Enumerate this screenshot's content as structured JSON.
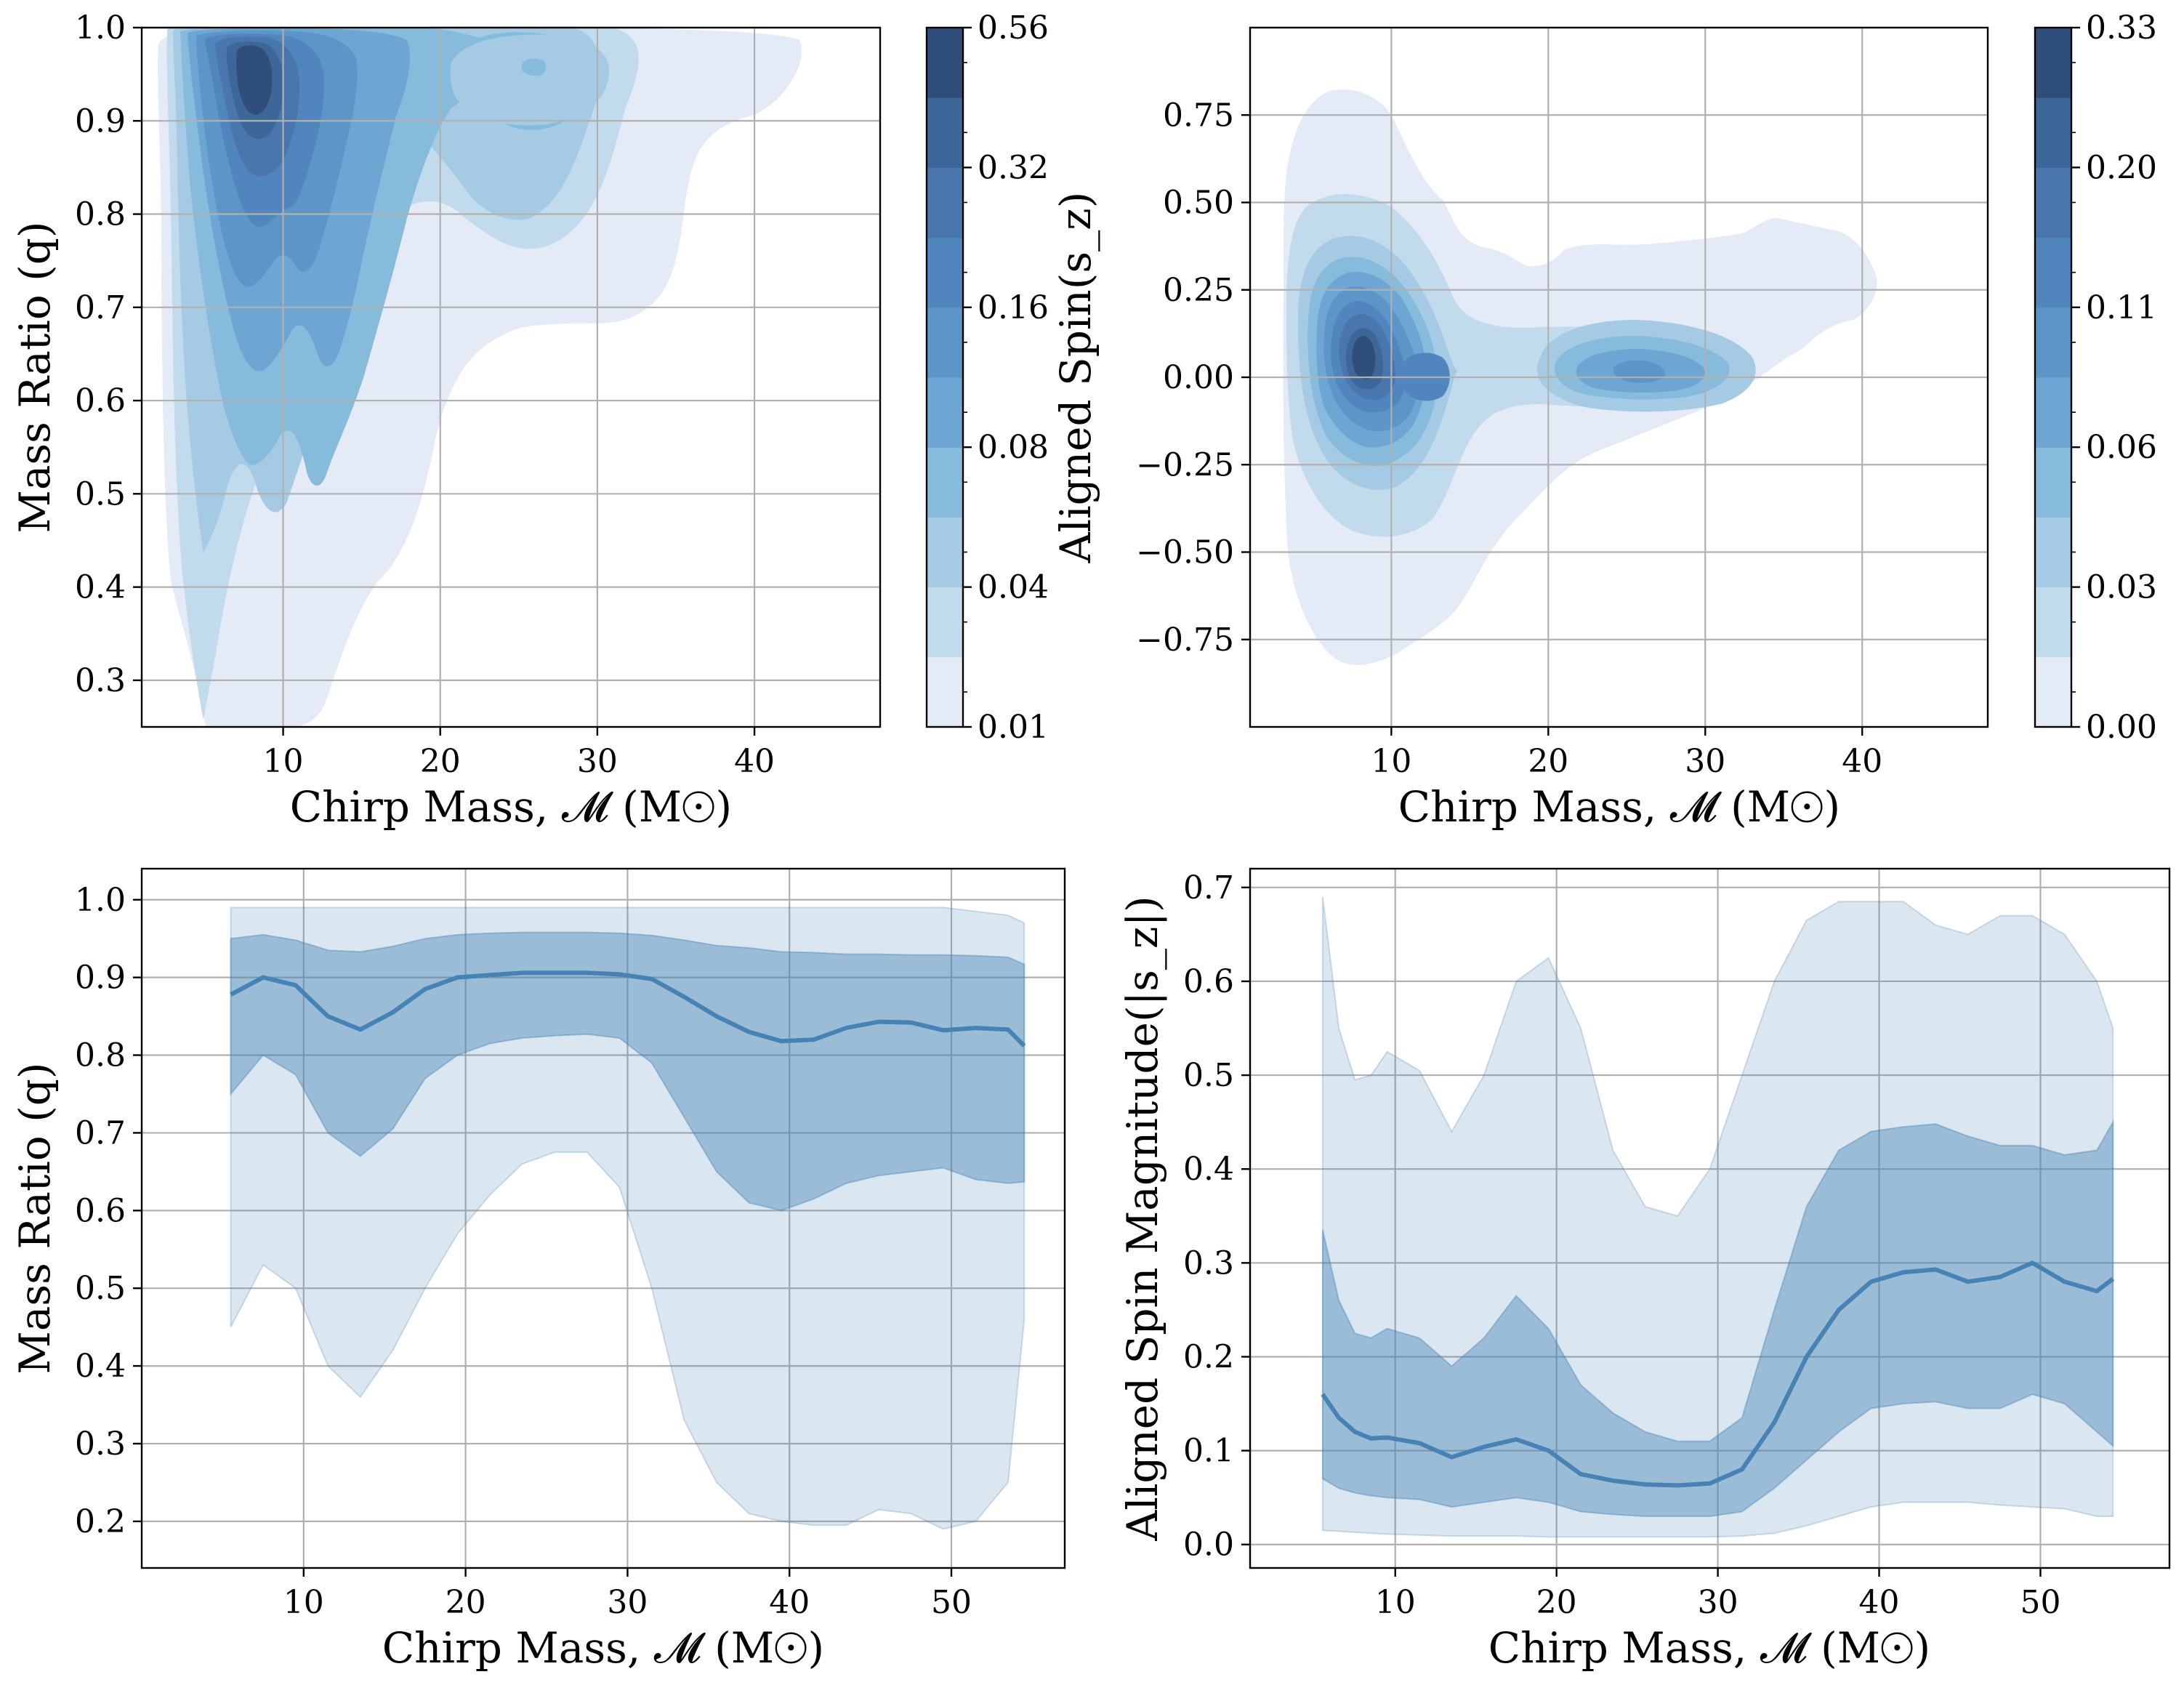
{
  "colors": {
    "fill": "#4682b4",
    "line": "#4682b4",
    "kde_levels": [
      "#e4ebf6",
      "#c2dbec",
      "#a4cbe3",
      "#86bbdc",
      "#6da6d2",
      "#5c95c8",
      "#5185bd",
      "#4976ad",
      "#3d6699",
      "#2f4f7a"
    ],
    "grid": "#b0b0b0"
  },
  "chart_data": [
    {
      "type": "heatmap",
      "xlabel": "Chirp Mass, 𝓜 (M☉)",
      "ylabel": "Mass Ratio (q)",
      "xlim": [
        1,
        48
      ],
      "ylim": [
        0.25,
        1.0
      ],
      "x_ticks": [
        10,
        20,
        30,
        40
      ],
      "y_ticks": [
        0.3,
        0.4,
        0.5,
        0.6,
        0.7,
        0.8,
        0.9,
        1.0
      ],
      "y_tick_labels": [
        "0.3",
        "0.4",
        "0.5",
        "0.6",
        "0.7",
        "0.8",
        "0.9",
        "1.0"
      ],
      "grid": true,
      "colorbar_ticks": [
        "0.01",
        "0.04",
        "0.08",
        "0.16",
        "0.32",
        "0.56"
      ],
      "peaks": [
        {
          "x": 8,
          "y": 0.95,
          "level": 10
        },
        {
          "x": 26,
          "y": 0.955,
          "level": 4
        }
      ]
    },
    {
      "type": "heatmap",
      "xlabel": "Chirp Mass, 𝓜 (M☉)",
      "ylabel": "Aligned Spin(s_z)",
      "xlim": [
        1,
        48
      ],
      "ylim": [
        -1.0,
        1.0
      ],
      "x_ticks": [
        10,
        20,
        30,
        40
      ],
      "y_ticks": [
        -0.75,
        -0.5,
        -0.25,
        0.0,
        0.25,
        0.5,
        0.75
      ],
      "y_tick_labels": [
        "−0.75",
        "−0.50",
        "−0.25",
        "0.00",
        "0.25",
        "0.50",
        "0.75"
      ],
      "grid": true,
      "colorbar_ticks": [
        "0.00",
        "0.03",
        "0.06",
        "0.11",
        "0.20",
        "0.33"
      ],
      "peaks": [
        {
          "x": 8.5,
          "y": 0.05,
          "level": 10
        },
        {
          "x": 26,
          "y": 0.03,
          "level": 5
        }
      ]
    },
    {
      "type": "area",
      "xlabel": "Chirp Mass, 𝓜 (M☉)",
      "ylabel": "Mass Ratio (q)",
      "xlim": [
        0,
        57
      ],
      "ylim": [
        0.14,
        1.04
      ],
      "x_ticks": [
        10,
        20,
        30,
        40,
        50
      ],
      "y_ticks": [
        0.2,
        0.3,
        0.4,
        0.5,
        0.6,
        0.7,
        0.8,
        0.9,
        1.0
      ],
      "y_tick_labels": [
        "0.2",
        "0.3",
        "0.4",
        "0.5",
        "0.6",
        "0.7",
        "0.8",
        "0.9",
        "1.0"
      ],
      "grid": true,
      "x": [
        5.5,
        7.5,
        9.5,
        11.5,
        13.5,
        15.5,
        17.5,
        19.5,
        21.5,
        23.5,
        25.5,
        27.5,
        29.5,
        31.5,
        33.5,
        35.5,
        37.5,
        39.5,
        41.5,
        43.5,
        45.5,
        47.5,
        49.5,
        51.5,
        53.5,
        54.5
      ],
      "median": [
        0.878,
        0.9,
        0.89,
        0.85,
        0.833,
        0.855,
        0.885,
        0.9,
        0.903,
        0.906,
        0.906,
        0.906,
        0.904,
        0.898,
        0.875,
        0.85,
        0.83,
        0.818,
        0.82,
        0.835,
        0.843,
        0.842,
        0.832,
        0.835,
        0.833,
        0.812
      ],
      "inner_lower": [
        0.75,
        0.8,
        0.775,
        0.7,
        0.67,
        0.705,
        0.77,
        0.8,
        0.815,
        0.822,
        0.825,
        0.827,
        0.822,
        0.79,
        0.72,
        0.65,
        0.61,
        0.6,
        0.615,
        0.635,
        0.645,
        0.65,
        0.655,
        0.64,
        0.635,
        0.637
      ],
      "inner_upper": [
        0.95,
        0.955,
        0.948,
        0.935,
        0.933,
        0.94,
        0.95,
        0.955,
        0.957,
        0.958,
        0.958,
        0.958,
        0.957,
        0.954,
        0.948,
        0.941,
        0.938,
        0.933,
        0.932,
        0.93,
        0.93,
        0.929,
        0.929,
        0.928,
        0.926,
        0.917
      ],
      "outer_lower": [
        0.45,
        0.53,
        0.5,
        0.4,
        0.36,
        0.42,
        0.5,
        0.57,
        0.62,
        0.66,
        0.675,
        0.675,
        0.63,
        0.5,
        0.33,
        0.25,
        0.21,
        0.2,
        0.195,
        0.195,
        0.215,
        0.21,
        0.19,
        0.2,
        0.25,
        0.46
      ],
      "outer_upper": [
        0.99,
        0.99,
        0.99,
        0.99,
        0.99,
        0.99,
        0.99,
        0.99,
        0.99,
        0.99,
        0.99,
        0.99,
        0.99,
        0.99,
        0.99,
        0.99,
        0.99,
        0.99,
        0.99,
        0.99,
        0.99,
        0.99,
        0.99,
        0.985,
        0.98,
        0.97
      ]
    },
    {
      "type": "area",
      "xlabel": "Chirp Mass, 𝓜 (M☉)",
      "ylabel": "Aligned Spin Magnitude(|s_z|)",
      "xlim": [
        1,
        58
      ],
      "ylim": [
        -0.025,
        0.72
      ],
      "x_ticks": [
        10,
        20,
        30,
        40,
        50
      ],
      "y_ticks": [
        0.0,
        0.1,
        0.2,
        0.3,
        0.4,
        0.5,
        0.6,
        0.7
      ],
      "y_tick_labels": [
        "0.0",
        "0.1",
        "0.2",
        "0.3",
        "0.4",
        "0.5",
        "0.6",
        "0.7"
      ],
      "grid": true,
      "x": [
        5.5,
        6.5,
        7.5,
        8.5,
        9.5,
        11.5,
        13.5,
        15.5,
        17.5,
        19.5,
        21.5,
        23.5,
        25.5,
        27.5,
        29.5,
        31.5,
        33.5,
        35.5,
        37.5,
        39.5,
        41.5,
        43.5,
        45.5,
        47.5,
        49.5,
        51.5,
        53.5,
        54.5
      ],
      "median": [
        0.16,
        0.135,
        0.12,
        0.113,
        0.114,
        0.108,
        0.093,
        0.104,
        0.112,
        0.1,
        0.075,
        0.068,
        0.064,
        0.063,
        0.065,
        0.08,
        0.13,
        0.2,
        0.25,
        0.28,
        0.29,
        0.293,
        0.28,
        0.285,
        0.3,
        0.28,
        0.27,
        0.283
      ],
      "inner_lower": [
        0.07,
        0.06,
        0.055,
        0.052,
        0.05,
        0.048,
        0.04,
        0.045,
        0.05,
        0.045,
        0.035,
        0.032,
        0.03,
        0.03,
        0.03,
        0.035,
        0.06,
        0.09,
        0.12,
        0.145,
        0.15,
        0.152,
        0.145,
        0.145,
        0.16,
        0.15,
        0.12,
        0.105
      ],
      "inner_upper": [
        0.335,
        0.26,
        0.225,
        0.22,
        0.23,
        0.22,
        0.19,
        0.22,
        0.265,
        0.23,
        0.17,
        0.14,
        0.12,
        0.11,
        0.11,
        0.135,
        0.25,
        0.36,
        0.42,
        0.44,
        0.445,
        0.448,
        0.435,
        0.425,
        0.425,
        0.415,
        0.42,
        0.45
      ],
      "outer_lower": [
        0.015,
        0.014,
        0.013,
        0.012,
        0.011,
        0.01,
        0.009,
        0.009,
        0.009,
        0.008,
        0.008,
        0.008,
        0.008,
        0.008,
        0.008,
        0.009,
        0.012,
        0.02,
        0.03,
        0.04,
        0.045,
        0.045,
        0.045,
        0.042,
        0.04,
        0.038,
        0.03,
        0.03
      ],
      "outer_upper": [
        0.69,
        0.55,
        0.495,
        0.5,
        0.525,
        0.505,
        0.44,
        0.5,
        0.6,
        0.625,
        0.55,
        0.42,
        0.36,
        0.35,
        0.4,
        0.5,
        0.6,
        0.665,
        0.685,
        0.685,
        0.685,
        0.66,
        0.65,
        0.67,
        0.67,
        0.65,
        0.6,
        0.55
      ]
    }
  ]
}
